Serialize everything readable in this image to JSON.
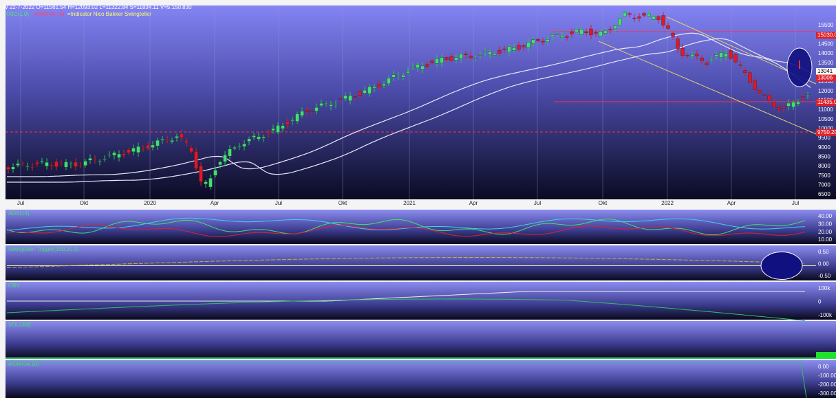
{
  "header": {
    "quote": "W 22-7-2022  O=11561.54  H=12093.02  L=11322.84  S=11834.11  V=5.150.830",
    "legend_symbol": "IXIC(1.0)",
    "legend_ma": "=M42(44.75)",
    "legend_indicator": "=Indicator Nico Bakker Swingteller"
  },
  "price_axis": {
    "labels": [
      "15500",
      "15000",
      "14500",
      "14000",
      "13500",
      "13000",
      "12500",
      "12000",
      "11500",
      "11000",
      "10500",
      "10000",
      "9500",
      "9000",
      "8500",
      "8000",
      "7500",
      "7000",
      "6500"
    ],
    "boxes": [
      {
        "text": "15030.0",
        "row": 1.05,
        "color": "#e0202a"
      },
      {
        "text": "13041",
        "row": 4.9,
        "color": "#ffffff"
      },
      {
        "text": "13006",
        "row": 5.6,
        "color": "#e0202a"
      },
      {
        "text": "11435.0",
        "row": 8.2,
        "color": "#e0202a"
      },
      {
        "text": "9750.20",
        "row": 11.4,
        "color": "#e0202a"
      }
    ]
  },
  "time_axis": [
    "Jul",
    "Okt",
    "2020",
    "Apr",
    "Jul",
    "Okt",
    "2021",
    "Apr",
    "Jul",
    "Okt",
    "2022",
    "Apr",
    "Jul"
  ],
  "panels": [
    {
      "title": "ADX(14)",
      "labels": [
        "40.00",
        "30.00",
        "20.00",
        "10.00"
      ]
    },
    {
      "title": "Swingteller Trigger(100,20,3)",
      "labels": [
        "0.50",
        "0.00",
        "-0.50"
      ]
    },
    {
      "title": "OBV",
      "labels": [
        "100k",
        "0",
        "-100k"
      ]
    },
    {
      "title": "VOLUME",
      "labels": []
    },
    {
      "title": "MOM(14,10)",
      "labels": [
        "0.00",
        "-100.00",
        "-200.00",
        "-300.00"
      ]
    }
  ]
}
